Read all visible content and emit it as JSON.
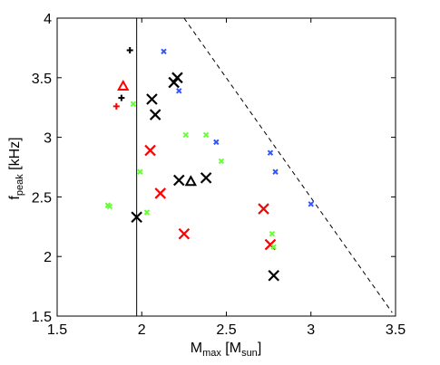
{
  "chart_data": {
    "type": "scatter",
    "xlabel": {
      "main": "M",
      "sub": "max",
      "rest": " [M",
      "sub2": "sun",
      "end": "]"
    },
    "ylabel": {
      "main": "f",
      "sub": "peak",
      "rest": " [kHz]"
    },
    "xlim": [
      1.5,
      3.5
    ],
    "ylim": [
      1.5,
      4.0
    ],
    "xticks": [
      "1.5",
      "2",
      "2.5",
      "3",
      "3.5"
    ],
    "xtick_values": [
      1.5,
      2.0,
      2.5,
      3.0,
      3.5
    ],
    "yticks": [
      "1.5",
      "2",
      "2.5",
      "3",
      "3.5",
      "4"
    ],
    "ytick_values": [
      1.5,
      2.0,
      2.5,
      3.0,
      3.5,
      4.0
    ],
    "grid": false,
    "vertical_line": {
      "x": 1.97,
      "style": "solid",
      "color": "#000000"
    },
    "dashed_line": {
      "x": [
        2.25,
        3.48
      ],
      "y": [
        4.0,
        1.53
      ],
      "style": "dashed",
      "color": "#000000"
    },
    "series": [
      {
        "color": "#000000",
        "marker": "big-x",
        "points": [
          [
            1.97,
            2.33
          ],
          [
            2.06,
            3.32
          ],
          [
            2.08,
            3.19
          ],
          [
            2.19,
            3.46
          ],
          [
            2.21,
            3.5
          ],
          [
            2.22,
            2.64
          ],
          [
            2.38,
            2.66
          ],
          [
            2.78,
            1.84
          ]
        ]
      },
      {
        "color": "#000000",
        "marker": "small-plus",
        "points": [
          [
            1.93,
            3.73
          ],
          [
            1.88,
            3.33
          ]
        ]
      },
      {
        "color": "#000000",
        "marker": "triangle",
        "points": [
          [
            2.29,
            2.63
          ]
        ]
      },
      {
        "color": "#ff0000",
        "marker": "big-x",
        "points": [
          [
            2.05,
            2.89
          ],
          [
            2.11,
            2.53
          ],
          [
            2.25,
            2.19
          ],
          [
            2.72,
            2.4
          ],
          [
            2.76,
            2.1
          ]
        ]
      },
      {
        "color": "#ff0000",
        "marker": "small-plus",
        "points": [
          [
            1.85,
            3.26
          ]
        ]
      },
      {
        "color": "#ff0000",
        "marker": "triangle",
        "points": [
          [
            1.89,
            3.43
          ]
        ]
      },
      {
        "color": "#66ff33",
        "marker": "small-x",
        "points": [
          [
            1.8,
            2.43
          ],
          [
            1.81,
            2.42
          ],
          [
            1.95,
            3.28
          ],
          [
            1.99,
            2.71
          ],
          [
            2.03,
            2.37
          ],
          [
            2.26,
            3.02
          ],
          [
            2.38,
            3.02
          ],
          [
            2.47,
            2.8
          ],
          [
            2.77,
            2.19
          ],
          [
            2.78,
            2.08
          ]
        ]
      },
      {
        "color": "#3355ff",
        "marker": "small-x",
        "points": [
          [
            2.13,
            3.72
          ],
          [
            2.22,
            3.39
          ],
          [
            2.44,
            2.96
          ],
          [
            2.76,
            2.87
          ],
          [
            2.79,
            2.71
          ],
          [
            3.0,
            2.44
          ]
        ]
      }
    ]
  }
}
